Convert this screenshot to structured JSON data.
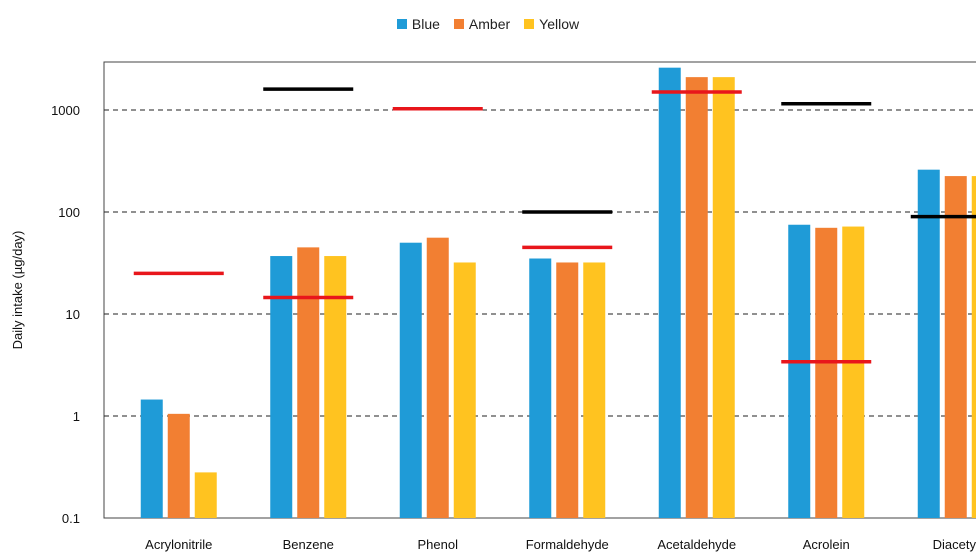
{
  "chart_data": {
    "type": "bar",
    "title": "",
    "xlabel": "",
    "ylabel": "Daily intake (µg/day)",
    "yscale": "log",
    "ylim": [
      0.1,
      3000
    ],
    "yticks": [
      0.1,
      1,
      10,
      100,
      1000
    ],
    "ytick_labels": [
      "0.1",
      "1",
      "10",
      "100",
      "1000"
    ],
    "grid": "horizontal dashed at major ticks",
    "legend_position": "top-center",
    "categories": [
      "Acrylonitrile",
      "Benzene",
      "Phenol",
      "Formaldehyde",
      "Acetaldehyde",
      "Acrolein",
      "Diacetyl"
    ],
    "series": [
      {
        "name": "Blue",
        "color": "#1f9bd7",
        "values": [
          1.45,
          37,
          50,
          35,
          2600,
          75,
          260
        ]
      },
      {
        "name": "Amber",
        "color": "#f27f32",
        "values": [
          1.05,
          45,
          56,
          32,
          2100,
          70,
          225
        ]
      },
      {
        "name": "Yellow",
        "color": "#ffc320",
        "values": [
          0.28,
          37,
          32,
          32,
          2100,
          72,
          225
        ]
      }
    ],
    "reference_lines": {
      "red": {
        "color": "#e8161b",
        "values": [
          25,
          14.5,
          1030,
          45,
          1500,
          3.4,
          null
        ]
      },
      "black": {
        "color": "#000000",
        "values": [
          null,
          1600,
          null,
          100,
          null,
          1150,
          90
        ]
      }
    }
  }
}
